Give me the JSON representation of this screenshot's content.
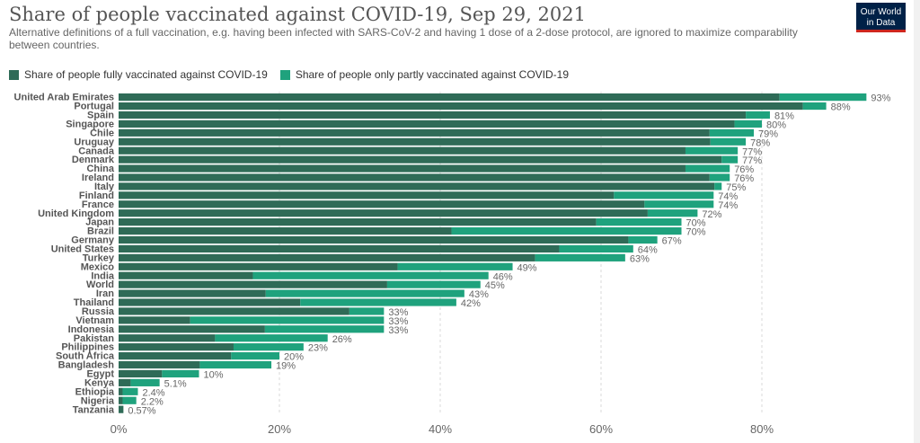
{
  "header": {
    "title": "Share of people vaccinated against COVID-19, Sep 29, 2021",
    "subtitle": "Alternative definitions of a full vaccination, e.g. having been infected with SARS-CoV-2 and having 1 dose of a 2-dose protocol, are ignored to maximize comparability between countries.",
    "logo_line1": "Our World",
    "logo_line2": "in Data"
  },
  "colors": {
    "fully": "#2f6b57",
    "partly": "#1fa27d",
    "grid": "#d8d8d8"
  },
  "chart_data": {
    "type": "bar",
    "orientation": "horizontal",
    "stacked": true,
    "title": "Share of people vaccinated against COVID-19, Sep 29, 2021",
    "xlim": [
      0,
      90
    ],
    "x_ticks": [
      0,
      20,
      40,
      60,
      80
    ],
    "x_tick_labels": [
      "0%",
      "20%",
      "40%",
      "60%",
      "80%"
    ],
    "grid": true,
    "legend_position": "top-left",
    "categories": [
      "United Arab Emirates",
      "Portugal",
      "Spain",
      "Singapore",
      "Chile",
      "Uruguay",
      "Canada",
      "Denmark",
      "China",
      "Ireland",
      "Italy",
      "Finland",
      "France",
      "United Kingdom",
      "Japan",
      "Brazil",
      "Germany",
      "United States",
      "Turkey",
      "Mexico",
      "India",
      "World",
      "Iran",
      "Thailand",
      "Russia",
      "Vietnam",
      "Indonesia",
      "Pakistan",
      "Philippines",
      "South Africa",
      "Bangladesh",
      "Egypt",
      "Kenya",
      "Ethiopia",
      "Nigeria",
      "Tanzania"
    ],
    "series": [
      {
        "name": "Share of people fully vaccinated against COVID-19",
        "values": [
          82.2,
          85.1,
          78.0,
          76.6,
          73.5,
          73.6,
          70.5,
          75.0,
          70.5,
          73.5,
          74.1,
          61.6,
          65.4,
          65.8,
          59.4,
          41.4,
          63.4,
          54.8,
          51.8,
          34.7,
          16.7,
          33.4,
          18.3,
          22.6,
          28.7,
          8.9,
          18.2,
          12.0,
          14.3,
          14.0,
          10.1,
          5.4,
          1.5,
          0.5,
          0.5,
          0.6
        ]
      },
      {
        "name": "Share of people only partly vaccinated against COVID-19",
        "values": [
          10.8,
          2.9,
          3.0,
          3.4,
          5.5,
          4.4,
          6.5,
          2.0,
          5.5,
          2.5,
          0.9,
          12.4,
          8.6,
          6.2,
          10.6,
          28.6,
          3.6,
          9.2,
          11.2,
          14.3,
          29.3,
          11.6,
          24.7,
          19.4,
          4.3,
          24.1,
          14.8,
          14.0,
          8.7,
          6.0,
          8.9,
          4.6,
          3.6,
          1.9,
          1.7,
          0.0
        ]
      }
    ],
    "value_labels": [
      "93%",
      "88%",
      "81%",
      "80%",
      "79%",
      "78%",
      "77%",
      "77%",
      "76%",
      "76%",
      "75%",
      "74%",
      "74%",
      "72%",
      "70%",
      "70%",
      "67%",
      "64%",
      "63%",
      "49%",
      "46%",
      "45%",
      "43%",
      "42%",
      "33%",
      "33%",
      "33%",
      "26%",
      "23%",
      "20%",
      "19%",
      "10%",
      "5.1%",
      "2.4%",
      "2.2%",
      "0.57%"
    ]
  }
}
